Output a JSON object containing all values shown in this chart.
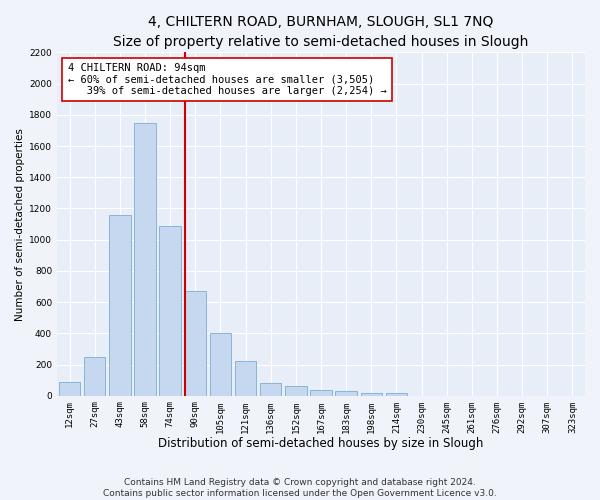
{
  "title": "4, CHILTERN ROAD, BURNHAM, SLOUGH, SL1 7NQ",
  "subtitle": "Size of property relative to semi-detached houses in Slough",
  "xlabel": "Distribution of semi-detached houses by size in Slough",
  "ylabel": "Number of semi-detached properties",
  "categories": [
    "12sqm",
    "27sqm",
    "43sqm",
    "58sqm",
    "74sqm",
    "90sqm",
    "105sqm",
    "121sqm",
    "136sqm",
    "152sqm",
    "167sqm",
    "183sqm",
    "198sqm",
    "214sqm",
    "230sqm",
    "245sqm",
    "261sqm",
    "276sqm",
    "292sqm",
    "307sqm",
    "323sqm"
  ],
  "values": [
    85,
    245,
    1160,
    1750,
    1090,
    670,
    400,
    225,
    80,
    65,
    35,
    30,
    20,
    20,
    0,
    0,
    0,
    0,
    0,
    0,
    0
  ],
  "bar_color": "#c5d8f0",
  "bar_edge_color": "#7aadd4",
  "vline_color": "#cc0000",
  "vline_x": 4.575,
  "annotation_line1": "4 CHILTERN ROAD: 94sqm",
  "annotation_line2": "← 60% of semi-detached houses are smaller (3,505)",
  "annotation_line3": "   39% of semi-detached houses are larger (2,254) →",
  "annotation_box_color": "#ffffff",
  "annotation_box_edge": "#cc0000",
  "ylim": [
    0,
    2200
  ],
  "yticks": [
    0,
    200,
    400,
    600,
    800,
    1000,
    1200,
    1400,
    1600,
    1800,
    2000,
    2200
  ],
  "footer1": "Contains HM Land Registry data © Crown copyright and database right 2024.",
  "footer2": "Contains public sector information licensed under the Open Government Licence v3.0.",
  "fig_background": "#f0f4fa",
  "plot_background": "#e8eef8",
  "grid_color": "#ffffff",
  "title_fontsize": 10,
  "xlabel_fontsize": 8.5,
  "ylabel_fontsize": 7.5,
  "tick_fontsize": 6.5,
  "annot_fontsize": 7.5,
  "footer_fontsize": 6.5
}
